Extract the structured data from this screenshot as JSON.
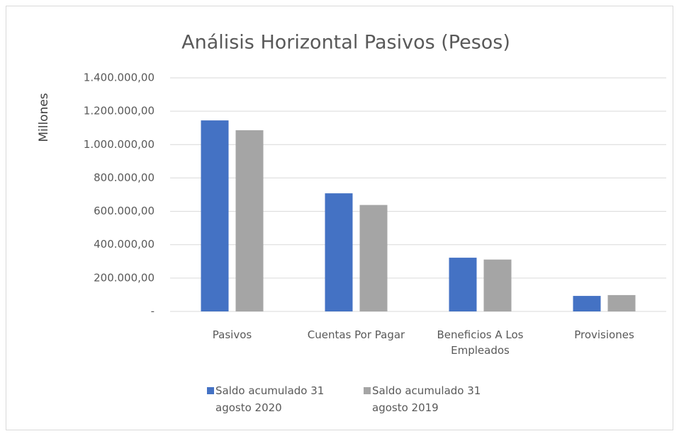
{
  "chart_data": {
    "type": "bar",
    "title": "Análisis Horizontal Pasivos (Pesos)",
    "y_label": "Millones",
    "categories": [
      "Pasivos",
      "Cuentas Por Pagar",
      "Beneficios A Los Empleados",
      "Provisiones"
    ],
    "series": [
      {
        "name": "Saldo acumulado 31 agosto 2020",
        "color": "#4472c4",
        "values": [
          1145000,
          708000,
          322000,
          93000
        ]
      },
      {
        "name": "Saldo acumulado 31 agosto 2019",
        "color": "#a5a5a5",
        "values": [
          1086000,
          638000,
          311000,
          98000
        ]
      }
    ],
    "ylim": [
      0,
      1400000
    ],
    "yticks": [
      {
        "value": 0,
        "label": "-"
      },
      {
        "value": 200000,
        "label": "200.000,00"
      },
      {
        "value": 400000,
        "label": "400.000,00"
      },
      {
        "value": 600000,
        "label": "600.000,00"
      },
      {
        "value": 800000,
        "label": "800.000,00"
      },
      {
        "value": 1000000,
        "label": "1.000.000,00"
      },
      {
        "value": 1200000,
        "label": "1.200.000,00"
      },
      {
        "value": 1400000,
        "label": "1.400.000,00"
      }
    ],
    "grid": true,
    "legend": "bottom"
  }
}
